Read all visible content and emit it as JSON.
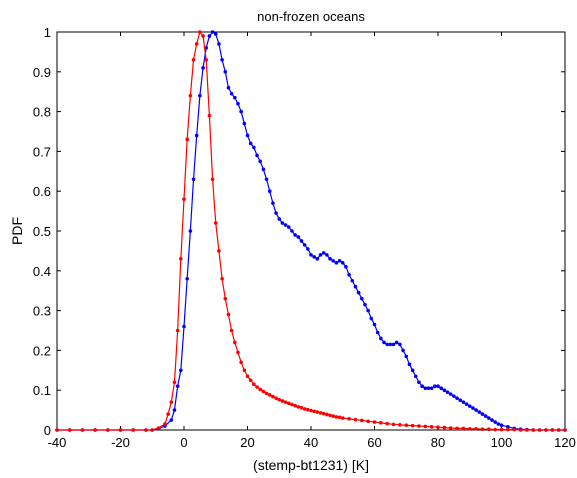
{
  "chart_data": {
    "type": "line",
    "title": "non-frozen oceans",
    "xlabel": "(stemp-bt1231) [K]",
    "ylabel": "PDF",
    "xlim": [
      -40,
      120
    ],
    "ylim": [
      0,
      1
    ],
    "xticks": [
      -40,
      -20,
      0,
      20,
      40,
      60,
      80,
      100,
      120
    ],
    "yticks": [
      0,
      0.1,
      0.2,
      0.3,
      0.4,
      0.5,
      0.6,
      0.7,
      0.8,
      0.9,
      1
    ],
    "grid": false,
    "legend": null,
    "series": [
      {
        "color": "#0000ff",
        "marker": "dot",
        "points": [
          [
            -40,
            0
          ],
          [
            -36,
            0
          ],
          [
            -32,
            0
          ],
          [
            -28,
            0
          ],
          [
            -24,
            0
          ],
          [
            -20,
            0
          ],
          [
            -16,
            0
          ],
          [
            -12,
            0
          ],
          [
            -10,
            0
          ],
          [
            -8,
            0.003
          ],
          [
            -6,
            0.01
          ],
          [
            -4,
            0.025
          ],
          [
            -3,
            0.05
          ],
          [
            -2,
            0.11
          ],
          [
            -1,
            0.15
          ],
          [
            0,
            0.26
          ],
          [
            1,
            0.38
          ],
          [
            2,
            0.5
          ],
          [
            3,
            0.63
          ],
          [
            4,
            0.74
          ],
          [
            5,
            0.84
          ],
          [
            6,
            0.91
          ],
          [
            7,
            0.96
          ],
          [
            8,
            0.99
          ],
          [
            9,
            1.0
          ],
          [
            10,
            0.995
          ],
          [
            11,
            0.97
          ],
          [
            12,
            0.93
          ],
          [
            13,
            0.9
          ],
          [
            14,
            0.86
          ],
          [
            15,
            0.845
          ],
          [
            16,
            0.835
          ],
          [
            17,
            0.82
          ],
          [
            18,
            0.8
          ],
          [
            19,
            0.77
          ],
          [
            20,
            0.74
          ],
          [
            21,
            0.72
          ],
          [
            22,
            0.71
          ],
          [
            23,
            0.69
          ],
          [
            24,
            0.675
          ],
          [
            25,
            0.655
          ],
          [
            26,
            0.63
          ],
          [
            27,
            0.6
          ],
          [
            28,
            0.57
          ],
          [
            29,
            0.545
          ],
          [
            30,
            0.53
          ],
          [
            31,
            0.52
          ],
          [
            32,
            0.515
          ],
          [
            33,
            0.51
          ],
          [
            34,
            0.5
          ],
          [
            35,
            0.49
          ],
          [
            36,
            0.485
          ],
          [
            37,
            0.475
          ],
          [
            38,
            0.465
          ],
          [
            39,
            0.455
          ],
          [
            40,
            0.44
          ],
          [
            41,
            0.435
          ],
          [
            42,
            0.43
          ],
          [
            43,
            0.44
          ],
          [
            44,
            0.445
          ],
          [
            45,
            0.44
          ],
          [
            46,
            0.43
          ],
          [
            47,
            0.425
          ],
          [
            48,
            0.42
          ],
          [
            49,
            0.425
          ],
          [
            50,
            0.42
          ],
          [
            51,
            0.41
          ],
          [
            52,
            0.39
          ],
          [
            53,
            0.375
          ],
          [
            54,
            0.36
          ],
          [
            55,
            0.345
          ],
          [
            56,
            0.33
          ],
          [
            57,
            0.315
          ],
          [
            58,
            0.3
          ],
          [
            59,
            0.28
          ],
          [
            60,
            0.265
          ],
          [
            61,
            0.245
          ],
          [
            62,
            0.23
          ],
          [
            63,
            0.22
          ],
          [
            64,
            0.215
          ],
          [
            65,
            0.215
          ],
          [
            66,
            0.215
          ],
          [
            67,
            0.22
          ],
          [
            68,
            0.215
          ],
          [
            69,
            0.2
          ],
          [
            70,
            0.185
          ],
          [
            71,
            0.165
          ],
          [
            72,
            0.15
          ],
          [
            73,
            0.135
          ],
          [
            74,
            0.12
          ],
          [
            75,
            0.11
          ],
          [
            76,
            0.105
          ],
          [
            77,
            0.105
          ],
          [
            78,
            0.105
          ],
          [
            79,
            0.11
          ],
          [
            80,
            0.11
          ],
          [
            81,
            0.105
          ],
          [
            82,
            0.1
          ],
          [
            83,
            0.095
          ],
          [
            84,
            0.09
          ],
          [
            85,
            0.085
          ],
          [
            86,
            0.08
          ],
          [
            87,
            0.075
          ],
          [
            88,
            0.07
          ],
          [
            89,
            0.065
          ],
          [
            90,
            0.06
          ],
          [
            91,
            0.055
          ],
          [
            92,
            0.05
          ],
          [
            93,
            0.045
          ],
          [
            94,
            0.04
          ],
          [
            95,
            0.035
          ],
          [
            96,
            0.03
          ],
          [
            97,
            0.025
          ],
          [
            98,
            0.02
          ],
          [
            99,
            0.015
          ],
          [
            100,
            0.012
          ],
          [
            102,
            0.008
          ],
          [
            104,
            0.004
          ],
          [
            106,
            0.002
          ],
          [
            108,
            0.001
          ],
          [
            110,
            0
          ],
          [
            112,
            0
          ],
          [
            114,
            0
          ],
          [
            116,
            0
          ],
          [
            118,
            0
          ],
          [
            120,
            0
          ]
        ]
      },
      {
        "color": "#ff0000",
        "marker": "dot",
        "points": [
          [
            -40,
            0
          ],
          [
            -36,
            0
          ],
          [
            -32,
            0
          ],
          [
            -28,
            0
          ],
          [
            -24,
            0
          ],
          [
            -20,
            0
          ],
          [
            -16,
            0
          ],
          [
            -12,
            0
          ],
          [
            -10,
            0
          ],
          [
            -8,
            0.005
          ],
          [
            -6,
            0.015
          ],
          [
            -5,
            0.04
          ],
          [
            -4,
            0.07
          ],
          [
            -3,
            0.12
          ],
          [
            -2,
            0.25
          ],
          [
            -1,
            0.43
          ],
          [
            0,
            0.58
          ],
          [
            1,
            0.73
          ],
          [
            2,
            0.84
          ],
          [
            3,
            0.93
          ],
          [
            4,
            0.97
          ],
          [
            5,
            1.0
          ],
          [
            6,
            0.99
          ],
          [
            7,
            0.93
          ],
          [
            8,
            0.79
          ],
          [
            9,
            0.63
          ],
          [
            10,
            0.52
          ],
          [
            11,
            0.45
          ],
          [
            12,
            0.38
          ],
          [
            13,
            0.33
          ],
          [
            14,
            0.29
          ],
          [
            15,
            0.25
          ],
          [
            16,
            0.22
          ],
          [
            17,
            0.195
          ],
          [
            18,
            0.17
          ],
          [
            19,
            0.15
          ],
          [
            20,
            0.135
          ],
          [
            21,
            0.125
          ],
          [
            22,
            0.115
          ],
          [
            23,
            0.108
          ],
          [
            24,
            0.102
          ],
          [
            25,
            0.097
          ],
          [
            26,
            0.092
          ],
          [
            27,
            0.088
          ],
          [
            28,
            0.084
          ],
          [
            29,
            0.08
          ],
          [
            30,
            0.076
          ],
          [
            31,
            0.073
          ],
          [
            32,
            0.07
          ],
          [
            33,
            0.067
          ],
          [
            34,
            0.064
          ],
          [
            35,
            0.061
          ],
          [
            36,
            0.058
          ],
          [
            37,
            0.056
          ],
          [
            38,
            0.053
          ],
          [
            39,
            0.051
          ],
          [
            40,
            0.049
          ],
          [
            41,
            0.047
          ],
          [
            42,
            0.045
          ],
          [
            43,
            0.043
          ],
          [
            44,
            0.041
          ],
          [
            45,
            0.039
          ],
          [
            46,
            0.037
          ],
          [
            47,
            0.035
          ],
          [
            48,
            0.033
          ],
          [
            49,
            0.032
          ],
          [
            50,
            0.03
          ],
          [
            52,
            0.028
          ],
          [
            54,
            0.026
          ],
          [
            56,
            0.024
          ],
          [
            58,
            0.022
          ],
          [
            60,
            0.02
          ],
          [
            62,
            0.018
          ],
          [
            64,
            0.016
          ],
          [
            66,
            0.014
          ],
          [
            68,
            0.013
          ],
          [
            70,
            0.012
          ],
          [
            72,
            0.011
          ],
          [
            74,
            0.01
          ],
          [
            76,
            0.009
          ],
          [
            78,
            0.008
          ],
          [
            80,
            0.007
          ],
          [
            82,
            0.006
          ],
          [
            84,
            0.005
          ],
          [
            86,
            0.004
          ],
          [
            88,
            0.004
          ],
          [
            90,
            0.003
          ],
          [
            92,
            0.003
          ],
          [
            94,
            0.002
          ],
          [
            96,
            0.002
          ],
          [
            98,
            0.001
          ],
          [
            100,
            0.001
          ],
          [
            102,
            0.001
          ],
          [
            104,
            0.001
          ],
          [
            106,
            0
          ],
          [
            108,
            0
          ],
          [
            110,
            0
          ],
          [
            112,
            0
          ],
          [
            114,
            0
          ],
          [
            116,
            0
          ],
          [
            118,
            0
          ],
          [
            120,
            0
          ]
        ]
      }
    ]
  }
}
